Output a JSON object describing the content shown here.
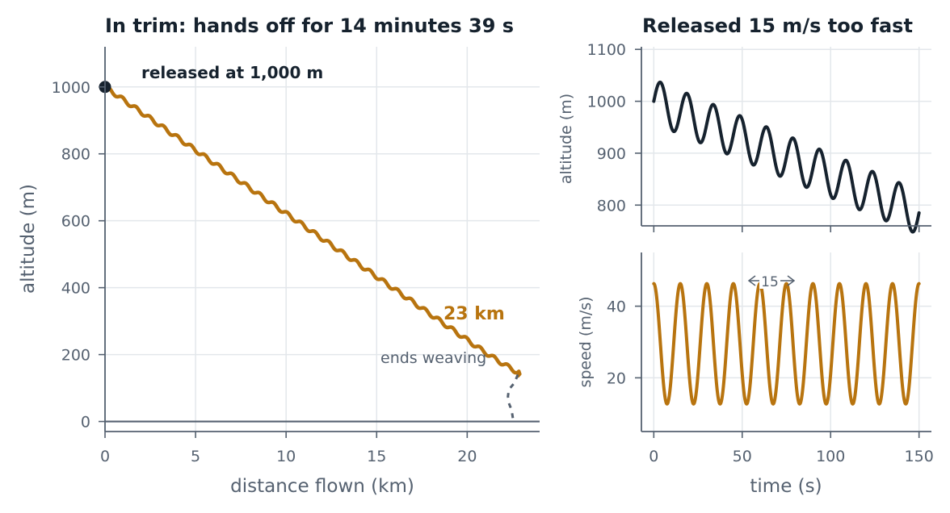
{
  "colors": {
    "gold": "#b8740f",
    "navy": "#16222e",
    "slate": "#556170",
    "grid": "#e3e7eb"
  },
  "chart_data": [
    {
      "type": "line",
      "title": "In trim: hands off for 14 minutes 39 s",
      "xlabel": "distance flown (km)",
      "ylabel": "altitude (m)",
      "xlim": [
        0,
        24
      ],
      "ylim": [
        -30,
        1120
      ],
      "xticks": [
        0,
        5,
        10,
        15,
        20
      ],
      "yticks": [
        0,
        200,
        400,
        600,
        800,
        1000
      ],
      "grid": true,
      "glide": {
        "x_start": 0,
        "y_start": 1000,
        "x_end": 22.8,
        "y_end": 138,
        "wiggle_amplitude_m": 6,
        "wiggle_period_km": 0.76
      },
      "ground_level": 0,
      "release_point": {
        "x": 0,
        "y": 1000
      },
      "spiral": [
        [
          22.8,
          140
        ],
        [
          22.6,
          115
        ],
        [
          22.3,
          95
        ],
        [
          22.25,
          75
        ],
        [
          22.3,
          55
        ],
        [
          22.45,
          35
        ],
        [
          22.5,
          18
        ],
        [
          22.55,
          0
        ]
      ],
      "annotations": {
        "release": "released at 1,000 m",
        "distance": "23 km",
        "end": "ends weaving"
      }
    },
    {
      "type": "line",
      "title": "Released 15 m/s too fast",
      "ylabel": "altitude (m)",
      "xlim": [
        -7,
        157
      ],
      "ylim": [
        760,
        1105
      ],
      "xticks": [
        0,
        50,
        100,
        150
      ],
      "yticks": [
        800,
        900,
        1000,
        1100
      ],
      "grid": true,
      "series": [
        {
          "start_altitude": 1000,
          "end_altitude": 785,
          "oscillation_amplitude": 42,
          "period_s": 15,
          "t_end": 150
        }
      ]
    },
    {
      "type": "line",
      "xlabel": "time (s)",
      "ylabel": "speed (m/s)",
      "xlim": [
        -7,
        157
      ],
      "ylim": [
        5,
        55
      ],
      "xticks": [
        0,
        50,
        100,
        150
      ],
      "yticks": [
        20,
        40
      ],
      "grid": true,
      "series": [
        {
          "mean_speed": 29.5,
          "amplitude": 16.8,
          "period_s": 15,
          "t_end": 150
        }
      ],
      "period_annotation": "15"
    }
  ]
}
